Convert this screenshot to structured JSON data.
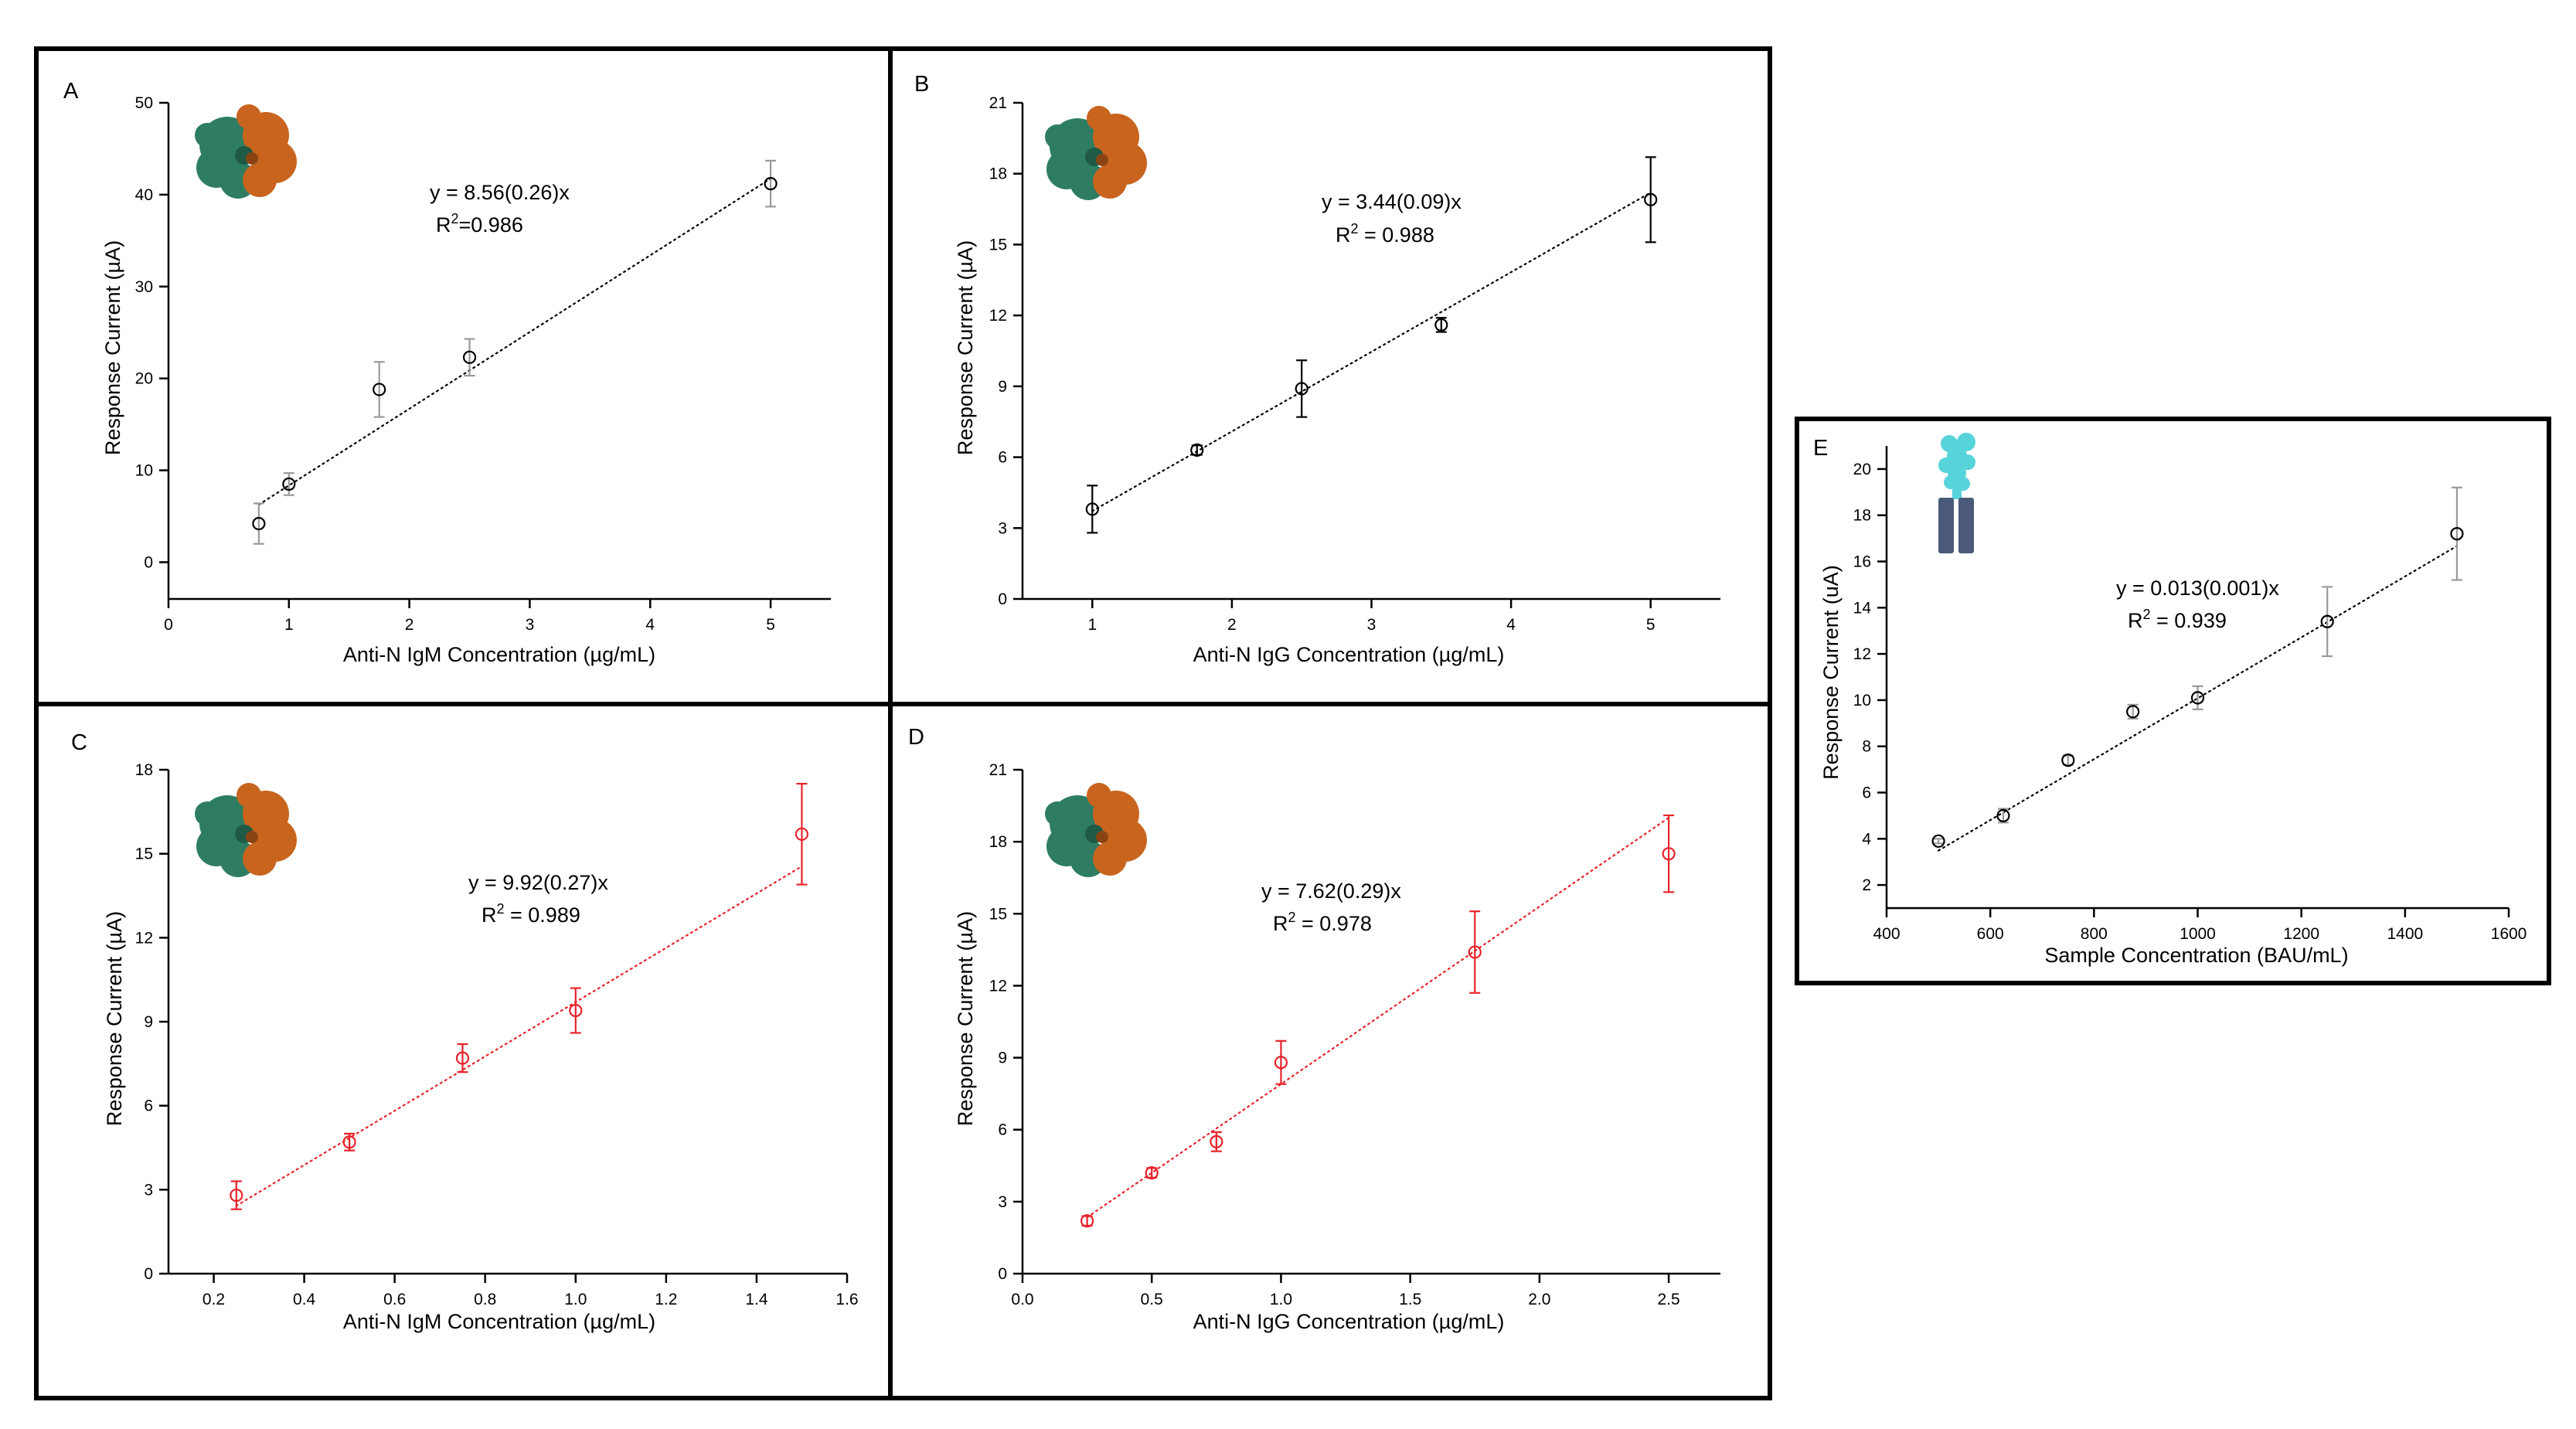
{
  "colors": {
    "black_series": "#000000",
    "red_series": "#e8232a",
    "gray_error": "#9a9a9a",
    "protein_green": "#2e7d63",
    "protein_orange": "#c8641e",
    "antibody_cyan": "#57d3da",
    "electrode_blue": "#4a5a78"
  },
  "chart_data": [
    {
      "id": "A",
      "type": "scatter",
      "panel_letter": "A",
      "xlabel": "Anti-N IgM Concentration (µg/mL)",
      "ylabel": "Response Current (µA)",
      "xlim": [
        0,
        5.5
      ],
      "ylim": [
        -4,
        50
      ],
      "xticks": [
        0,
        1,
        2,
        3,
        4,
        5
      ],
      "yticks": [
        0,
        10,
        20,
        30,
        40,
        50
      ],
      "xtick_labels": [
        "0",
        "1",
        "2",
        "3",
        "4",
        "5"
      ],
      "ytick_labels": [
        "0",
        "10",
        "20",
        "30",
        "40",
        "50"
      ],
      "series": [
        {
          "name": "IgM",
          "color": "#000000",
          "error_color": "#9a9a9a",
          "x": [
            0.75,
            1.0,
            1.75,
            2.5,
            5.0
          ],
          "y": [
            4.2,
            8.5,
            18.8,
            22.3,
            41.2
          ],
          "err": [
            2.2,
            1.2,
            3.0,
            2.0,
            2.5
          ]
        }
      ],
      "fit": {
        "slope": 8.35,
        "intercept": 0,
        "x_range": [
          0.75,
          5.0
        ]
      },
      "equation": {
        "line1": "y = 8.56(0.26)x",
        "r2_prefix": "R",
        "r2_exp": "2",
        "r2_value": "=0.986"
      },
      "icon": "n-protein-icon"
    },
    {
      "id": "B",
      "type": "scatter",
      "panel_letter": "B",
      "xlabel": "Anti-N IgG Concentration (µg/mL)",
      "ylabel": "Response Current (µA)",
      "xlim": [
        0.5,
        5.5
      ],
      "ylim": [
        0,
        21
      ],
      "xticks": [
        1,
        2,
        3,
        4,
        5
      ],
      "yticks": [
        0,
        3,
        6,
        9,
        12,
        15,
        18,
        21
      ],
      "xtick_labels": [
        "1",
        "2",
        "3",
        "4",
        "5"
      ],
      "ytick_labels": [
        "0",
        "3",
        "6",
        "9",
        "12",
        "15",
        "18",
        "21"
      ],
      "series": [
        {
          "name": "IgG",
          "color": "#000000",
          "error_color": "#000000",
          "x": [
            1.0,
            1.75,
            2.5,
            3.5,
            5.0
          ],
          "y": [
            3.8,
            6.3,
            8.9,
            11.6,
            16.9
          ],
          "err": [
            1.0,
            0.2,
            1.2,
            0.3,
            1.8
          ]
        }
      ],
      "fit": {
        "slope": 3.37,
        "intercept": 0.35,
        "x_range": [
          1.0,
          5.0
        ]
      },
      "equation": {
        "line1": "y = 3.44(0.09)x",
        "r2_prefix": "R",
        "r2_exp": "2",
        "r2_value": " = 0.988"
      },
      "icon": "n-protein-icon"
    },
    {
      "id": "C",
      "type": "scatter",
      "panel_letter": "C",
      "xlabel": "Anti-N IgM Concentration (µg/mL)",
      "ylabel": "Response Current (µA)",
      "xlim": [
        0.1,
        1.6
      ],
      "ylim": [
        0,
        18
      ],
      "xticks": [
        0.2,
        0.4,
        0.6,
        0.8,
        1.0,
        1.2,
        1.4,
        1.6
      ],
      "yticks": [
        0,
        3,
        6,
        9,
        12,
        15,
        18
      ],
      "xtick_labels": [
        "0.2",
        "0.4",
        "0.6",
        "0.8",
        "1.0",
        "1.2",
        "1.4",
        "1.6"
      ],
      "ytick_labels": [
        "0",
        "3",
        "6",
        "9",
        "12",
        "15",
        "18"
      ],
      "series": [
        {
          "name": "IgM",
          "color": "#e8232a",
          "error_color": "#e8232a",
          "x": [
            0.25,
            0.5,
            0.75,
            1.0,
            1.5
          ],
          "y": [
            2.8,
            4.7,
            7.7,
            9.4,
            15.7
          ],
          "err": [
            0.5,
            0.3,
            0.5,
            0.8,
            1.8
          ]
        }
      ],
      "fit": {
        "slope": 9.7,
        "intercept": 0,
        "x_range": [
          0.25,
          1.5
        ]
      },
      "equation": {
        "line1": "y = 9.92(0.27)x",
        "r2_prefix": "R",
        "r2_exp": "2",
        "r2_value": " = 0.989"
      },
      "icon": "n-protein-icon"
    },
    {
      "id": "D",
      "type": "scatter",
      "panel_letter": "D",
      "xlabel": "Anti-N IgG Concentration (µg/mL)",
      "ylabel": "Response Current (µA)",
      "xlim": [
        0,
        2.7
      ],
      "ylim": [
        0,
        21
      ],
      "xticks": [
        0.0,
        0.5,
        1.0,
        1.5,
        2.0,
        2.5
      ],
      "yticks": [
        0,
        3,
        6,
        9,
        12,
        15,
        18,
        21
      ],
      "xtick_labels": [
        "0.0",
        "0.5",
        "1.0",
        "1.5",
        "2.0",
        "2.5"
      ],
      "ytick_labels": [
        "0",
        "3",
        "6",
        "9",
        "12",
        "15",
        "18",
        "21"
      ],
      "series": [
        {
          "name": "IgG",
          "color": "#e8232a",
          "error_color": "#e8232a",
          "x": [
            0.25,
            0.5,
            0.75,
            1.0,
            1.75,
            2.5
          ],
          "y": [
            2.2,
            4.2,
            5.5,
            8.8,
            13.4,
            17.5
          ],
          "err": [
            0.2,
            0.2,
            0.4,
            0.9,
            1.7,
            1.6
          ]
        }
      ],
      "fit": {
        "slope": 7.4,
        "intercept": 0.5,
        "x_range": [
          0.25,
          2.5
        ]
      },
      "equation": {
        "line1": "y = 7.62(0.29)x",
        "r2_prefix": "R",
        "r2_exp": "2",
        "r2_value": " = 0.978"
      },
      "icon": "n-protein-icon"
    },
    {
      "id": "E",
      "type": "scatter",
      "panel_letter": "E",
      "xlabel": "Sample Concentration (BAU/mL)",
      "ylabel": "Response Current (uA)",
      "xlim": [
        400,
        1600
      ],
      "ylim": [
        1,
        21
      ],
      "xticks": [
        400,
        600,
        800,
        1000,
        1200,
        1400,
        1600
      ],
      "yticks": [
        2,
        4,
        6,
        8,
        10,
        12,
        14,
        16,
        18,
        20
      ],
      "xtick_labels": [
        "400",
        "600",
        "800",
        "1000",
        "1200",
        "1400",
        "1600"
      ],
      "ytick_labels": [
        "2",
        "4",
        "6",
        "8",
        "10",
        "12",
        "14",
        "16",
        "18",
        "20"
      ],
      "series": [
        {
          "name": "Samples",
          "color": "#000000",
          "error_color": "#9a9a9a",
          "x": [
            500,
            625,
            750,
            875,
            1000,
            1250,
            1500
          ],
          "y": [
            3.9,
            5.0,
            7.4,
            9.5,
            10.1,
            13.4,
            17.2
          ],
          "err": [
            0.1,
            0.3,
            0.2,
            0.3,
            0.5,
            1.5,
            2.0
          ]
        }
      ],
      "fit": {
        "slope": 0.01318,
        "intercept": -3.1,
        "x_range": [
          500,
          1500
        ]
      },
      "equation": {
        "line1": "y = 0.013(0.001)x",
        "r2_prefix": "R",
        "r2_exp": "2",
        "r2_value": " = 0.939"
      },
      "icon": "antibody-electrode-icon"
    }
  ]
}
